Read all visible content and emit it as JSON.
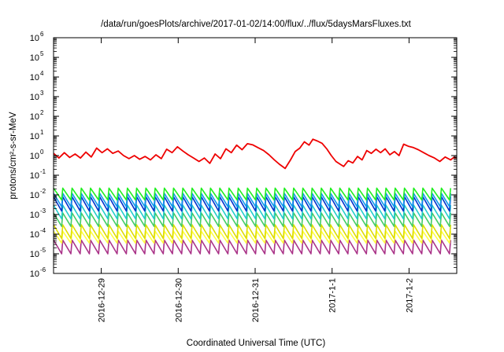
{
  "chart_data": {
    "type": "line",
    "title": "/data/run/goesPlots/archive/2017-01-02/14:00/flux/../flux/5daysMarsFluxes.txt",
    "xlabel": "Coordinated Universal Time (UTC)",
    "ylabel": "protons/cm²-s-sr-MeV",
    "y_scale": "log",
    "ylim": [
      1e-06,
      1000000.0
    ],
    "xlim_days": [
      -3.62,
      1.62
    ],
    "x_ticks": [
      {
        "label": "2016-12-29",
        "day": -3.0
      },
      {
        "label": "2016-12-30",
        "day": -2.0
      },
      {
        "label": "2016-12-31",
        "day": -1.0
      },
      {
        "label": "2017-1-1",
        "day": 0.0
      },
      {
        "label": "2017-1-2",
        "day": 1.0
      }
    ],
    "y_ticks": [
      {
        "base": "10",
        "exp": "-6",
        "value": 1e-06
      },
      {
        "base": "10",
        "exp": "-5",
        "value": 1e-05
      },
      {
        "base": "10",
        "exp": "-4",
        "value": 0.0001
      },
      {
        "base": "10",
        "exp": "-3",
        "value": 0.001
      },
      {
        "base": "10",
        "exp": "-2",
        "value": 0.01
      },
      {
        "base": "10",
        "exp": "-1",
        "value": 0.1
      },
      {
        "base": "10",
        "exp": "0",
        "value": 1
      },
      {
        "base": "10",
        "exp": "1",
        "value": 10
      },
      {
        "base": "10",
        "exp": "2",
        "value": 100
      },
      {
        "base": "10",
        "exp": "3",
        "value": 1000
      },
      {
        "base": "10",
        "exp": "4",
        "value": 10000
      },
      {
        "base": "10",
        "exp": "5",
        "value": 100000
      },
      {
        "base": "10",
        "exp": "6",
        "value": 1000000
      }
    ],
    "grid": false,
    "legend": "none",
    "series": [
      {
        "color": "#ee0000",
        "points": [
          [
            -3.62,
            1.3
          ],
          [
            -3.55,
            0.75
          ],
          [
            -3.48,
            1.4
          ],
          [
            -3.41,
            0.8
          ],
          [
            -3.34,
            1.2
          ],
          [
            -3.27,
            0.75
          ],
          [
            -3.2,
            1.5
          ],
          [
            -3.13,
            0.85
          ],
          [
            -3.06,
            2.4
          ],
          [
            -2.99,
            1.4
          ],
          [
            -2.92,
            2.2
          ],
          [
            -2.85,
            1.3
          ],
          [
            -2.78,
            1.7
          ],
          [
            -2.71,
            1.0
          ],
          [
            -2.64,
            0.7
          ],
          [
            -2.57,
            1.0
          ],
          [
            -2.5,
            0.65
          ],
          [
            -2.43,
            0.9
          ],
          [
            -2.36,
            0.6
          ],
          [
            -2.29,
            1.1
          ],
          [
            -2.22,
            0.7
          ],
          [
            -2.15,
            2.1
          ],
          [
            -2.08,
            1.4
          ],
          [
            -2.01,
            2.8
          ],
          [
            -1.94,
            1.7
          ],
          [
            -1.87,
            1.1
          ],
          [
            -1.8,
            0.75
          ],
          [
            -1.73,
            0.5
          ],
          [
            -1.66,
            0.75
          ],
          [
            -1.59,
            0.4
          ],
          [
            -1.52,
            1.2
          ],
          [
            -1.45,
            0.7
          ],
          [
            -1.38,
            2.2
          ],
          [
            -1.31,
            1.4
          ],
          [
            -1.24,
            3.4
          ],
          [
            -1.17,
            2.0
          ],
          [
            -1.1,
            4.0
          ],
          [
            -1.03,
            3.5
          ],
          [
            -0.96,
            2.5
          ],
          [
            -0.89,
            1.8
          ],
          [
            -0.82,
            1.1
          ],
          [
            -0.75,
            0.6
          ],
          [
            -0.68,
            0.35
          ],
          [
            -0.61,
            0.22
          ],
          [
            -0.54,
            0.6
          ],
          [
            -0.48,
            1.6
          ],
          [
            -0.42,
            2.4
          ],
          [
            -0.36,
            5.0
          ],
          [
            -0.3,
            3.4
          ],
          [
            -0.25,
            6.8
          ],
          [
            -0.19,
            5.5
          ],
          [
            -0.13,
            4.2
          ],
          [
            -0.07,
            2.2
          ],
          [
            -0.01,
            1.0
          ],
          [
            0.05,
            0.5
          ],
          [
            0.11,
            0.35
          ],
          [
            0.15,
            0.28
          ],
          [
            0.21,
            0.55
          ],
          [
            0.27,
            0.42
          ],
          [
            0.33,
            0.9
          ],
          [
            0.39,
            0.6
          ],
          [
            0.45,
            1.8
          ],
          [
            0.51,
            1.3
          ],
          [
            0.57,
            2.1
          ],
          [
            0.63,
            1.4
          ],
          [
            0.69,
            2.2
          ],
          [
            0.75,
            1.1
          ],
          [
            0.81,
            1.6
          ],
          [
            0.87,
            1.0
          ],
          [
            0.93,
            3.8
          ],
          [
            0.99,
            3.0
          ],
          [
            1.05,
            2.6
          ],
          [
            1.12,
            2.0
          ],
          [
            1.19,
            1.4
          ],
          [
            1.26,
            1.0
          ],
          [
            1.33,
            0.75
          ],
          [
            1.4,
            0.5
          ],
          [
            1.47,
            0.85
          ],
          [
            1.54,
            0.6
          ],
          [
            1.58,
            0.8
          ],
          [
            1.62,
            0.75
          ]
        ]
      },
      {
        "color": "#22ee22",
        "pattern": "sawtooth",
        "period": 0.12,
        "high": 0.022,
        "low": 0.0055
      },
      {
        "color": "#1199ee",
        "pattern": "sawtooth",
        "period": 0.12,
        "high": 0.012,
        "low": 0.0025
      },
      {
        "color": "#0033cc",
        "pattern": "sawtooth",
        "period": 0.12,
        "high": 0.008,
        "low": 0.0015
      },
      {
        "color": "#22cccc",
        "pattern": "sawtooth",
        "period": 0.12,
        "high": 0.003,
        "low": 0.0006
      },
      {
        "color": "#44cc66",
        "pattern": "sawtooth",
        "period": 0.12,
        "high": 0.0012,
        "low": 0.00025
      },
      {
        "color": "#dddd00",
        "pattern": "sawtooth",
        "period": 0.12,
        "high": 0.0003,
        "low": 6e-05
      },
      {
        "color": "#ffff44",
        "pattern": "sawtooth",
        "period": 0.12,
        "high": 0.00014,
        "low": 3.5e-05
      },
      {
        "color": "#aa3388",
        "pattern": "sawtooth",
        "period": 0.12,
        "high": 5e-05,
        "low": 1e-05
      }
    ]
  }
}
